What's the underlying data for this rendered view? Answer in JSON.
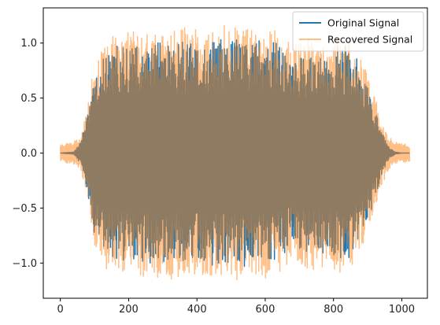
{
  "chart_data": {
    "type": "line",
    "title": "",
    "xlabel": "",
    "ylabel": "",
    "xlim": [
      -50,
      1075
    ],
    "ylim": [
      -1.32,
      1.32
    ],
    "x_ticks": [
      0,
      200,
      400,
      600,
      800,
      1000
    ],
    "x_tick_labels": [
      "0",
      "200",
      "400",
      "600",
      "800",
      "1000"
    ],
    "y_ticks": [
      -1.0,
      -0.5,
      0.0,
      0.5,
      1.0
    ],
    "y_tick_labels": [
      "−1.0",
      "−0.5",
      "0.0",
      "0.5",
      "1.0"
    ],
    "grid": false,
    "legend": {
      "placement": "top-right",
      "entries": [
        {
          "label": "Original Signal",
          "color": "#1f77b4"
        },
        {
          "label": "Recovered Signal",
          "color": "#ff7f0e"
        }
      ]
    },
    "series": [
      {
        "name": "Original Signal",
        "color": "#1f77b4",
        "alpha": 1.0,
        "n_samples": 1024,
        "envelope": {
          "x": [
            0,
            40,
            60,
            80,
            100,
            130,
            160,
            200,
            250,
            300,
            350,
            400,
            450,
            500,
            550,
            600,
            640,
            680,
            700,
            720,
            750,
            780,
            820,
            850,
            880,
            900,
            920,
            940,
            960,
            980,
            1000,
            1024
          ],
          "amp": [
            0.0,
            0.01,
            0.1,
            0.35,
            0.75,
            0.92,
            0.95,
            0.97,
            0.96,
            0.98,
            0.97,
            0.97,
            0.98,
            0.99,
            0.98,
            0.99,
            0.95,
            0.8,
            0.85,
            0.9,
            0.88,
            0.86,
            0.93,
            0.92,
            0.75,
            0.6,
            0.4,
            0.22,
            0.06,
            0.01,
            0.0,
            0.0
          ]
        }
      },
      {
        "name": "Recovered Signal",
        "color": "#ff7f0e",
        "alpha": 0.5,
        "n_samples": 1024,
        "envelope": {
          "x": [
            0,
            40,
            60,
            80,
            100,
            130,
            160,
            200,
            250,
            300,
            350,
            400,
            450,
            500,
            550,
            600,
            640,
            680,
            700,
            720,
            750,
            780,
            820,
            850,
            880,
            900,
            920,
            940,
            960,
            980,
            1000,
            1024
          ],
          "amp": [
            0.08,
            0.1,
            0.15,
            0.4,
            0.8,
            1.0,
            1.05,
            1.05,
            1.08,
            1.1,
            1.12,
            1.1,
            1.1,
            1.12,
            1.1,
            1.12,
            1.05,
            0.95,
            1.0,
            1.05,
            1.0,
            0.98,
            1.05,
            1.02,
            0.85,
            0.7,
            0.5,
            0.3,
            0.15,
            0.1,
            0.08,
            0.08
          ]
        }
      }
    ]
  }
}
